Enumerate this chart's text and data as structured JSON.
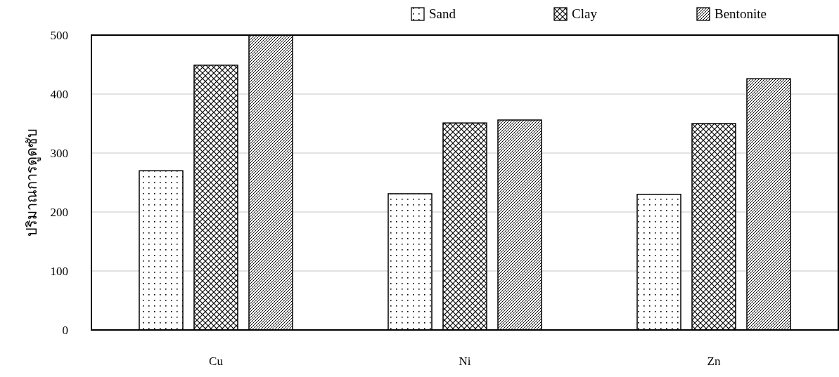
{
  "chart_data": {
    "type": "bar",
    "ylabel": "ปริมาณการดูดซับ",
    "categories": [
      "Cu",
      "Ni",
      "Zn"
    ],
    "series": [
      {
        "name": "Sand",
        "color": "#000000",
        "values": [
          270,
          231,
          230
        ]
      },
      {
        "name": "Clay",
        "color": "#000000",
        "values": [
          449,
          351,
          350
        ]
      },
      {
        "name": "Bentonite",
        "color": "#000000",
        "values": [
          500,
          356,
          426
        ]
      }
    ],
    "ylim": [
      0,
      500
    ],
    "yticks": [
      0,
      100,
      200,
      300,
      400,
      500
    ],
    "grid": "y",
    "legend": "top right"
  }
}
